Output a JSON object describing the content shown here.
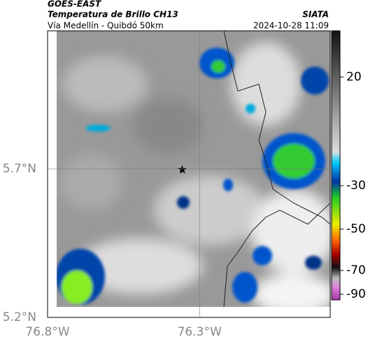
{
  "header": {
    "source": "GOES-EAST",
    "title": "Temperatura de Brillo CH13",
    "subtitle": "Vía Medellín - Quibdó 50km",
    "agency": "SIATA",
    "datetime": "2024-10-28 11:09"
  },
  "map": {
    "xlim": [
      -76.8,
      -75.87
    ],
    "ylim": [
      5.2,
      6.165
    ],
    "xticks": [
      {
        "value": -76.8,
        "label": "76.8°W"
      },
      {
        "value": -76.3,
        "label": "76.3°W"
      }
    ],
    "yticks": [
      {
        "value": 5.7,
        "label": "5.7°N"
      },
      {
        "value": 5.2,
        "label": "5.2°N"
      }
    ]
  },
  "colorbar": {
    "ticks": [
      20,
      -30,
      -50,
      -70,
      -90
    ]
  }
}
